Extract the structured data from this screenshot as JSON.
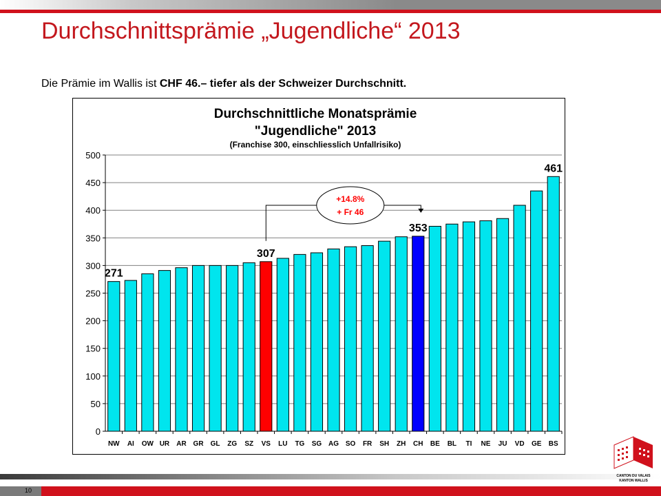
{
  "slide": {
    "title": "Durchschnittsprämie „Jugendliche“ 2013",
    "subtitle_prefix": "Die Prämie im Wallis ist ",
    "subtitle_bold": "CHF 46.– tiefer als der Schweizer Durchschnitt.",
    "page_number": "10",
    "logo_line1": "CANTON DU VALAIS",
    "logo_line2": "KANTON WALLIS"
  },
  "colors": {
    "bar": "#00e5ee",
    "highlight_vs": "#ff0000",
    "highlight_ch": "#0000ff",
    "title_red": "#c3171d",
    "annotation_red": "#ff0000"
  },
  "chart_data": {
    "type": "bar",
    "title_line1": "Durchschnittliche Monatsprämie",
    "title_line2": "\"Jugendliche\" 2013",
    "title_line3": "(Franchise 300, einschliesslich Unfallrisiko)",
    "categories": [
      "NW",
      "AI",
      "OW",
      "UR",
      "AR",
      "GR",
      "GL",
      "ZG",
      "SZ",
      "VS",
      "LU",
      "TG",
      "SG",
      "AG",
      "SO",
      "FR",
      "SH",
      "ZH",
      "CH",
      "BE",
      "BL",
      "TI",
      "NE",
      "JU",
      "VD",
      "GE",
      "BS"
    ],
    "values": [
      271,
      273,
      285,
      291,
      296,
      300,
      300,
      300,
      305,
      307,
      313,
      320,
      323,
      330,
      334,
      336,
      344,
      352,
      353,
      371,
      375,
      379,
      381,
      385,
      409,
      435,
      461
    ],
    "highlighted": {
      "VS": "highlight_vs",
      "CH": "highlight_ch"
    },
    "data_labels": [
      {
        "category": "NW",
        "text": "271"
      },
      {
        "category": "VS",
        "text": "307"
      },
      {
        "category": "CH",
        "text": "353"
      },
      {
        "category": "BS",
        "text": "461"
      }
    ],
    "annotation": {
      "line1": "+14.8%",
      "line2": "+ Fr 46",
      "from": "VS",
      "to": "CH"
    },
    "ylim": [
      0,
      500
    ],
    "yticks": [
      0,
      50,
      100,
      150,
      200,
      250,
      300,
      350,
      400,
      450,
      500
    ],
    "grid": true,
    "xlabel": "",
    "ylabel": ""
  }
}
